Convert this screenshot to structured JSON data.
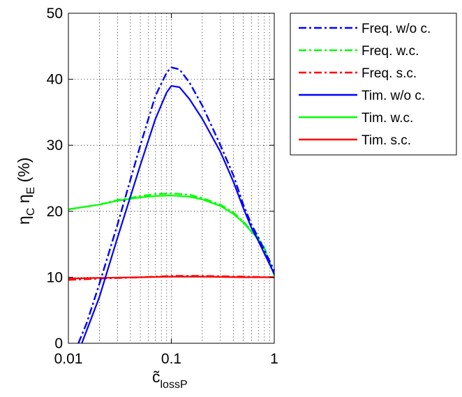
{
  "chart_data": {
    "type": "line",
    "xscale": "log",
    "xlim": [
      0.01,
      1
    ],
    "ylim": [
      0,
      50
    ],
    "x_ticks": [
      0.01,
      0.1,
      1
    ],
    "x_tick_labels": [
      "0.01",
      "0.1",
      "1"
    ],
    "y_ticks": [
      0,
      10,
      20,
      30,
      40,
      50
    ],
    "y_tick_labels": [
      "0",
      "10",
      "20",
      "30",
      "40",
      "50"
    ],
    "xlabel": {
      "base": "c̃",
      "sub": "lossP"
    },
    "ylabel": {
      "eta1": "η",
      "sub1": "C",
      "eta2": "η",
      "sub2": "E",
      "unit": "(%)"
    },
    "grid": true,
    "legend_position": "outside-right-top",
    "series": [
      {
        "name": "Freq. w/o c.",
        "color": "#0000ff",
        "style": "dashdot",
        "x": [
          0.0125,
          0.015,
          0.02,
          0.03,
          0.05,
          0.07,
          0.09,
          0.1,
          0.12,
          0.15,
          0.2,
          0.3,
          0.4,
          0.5,
          0.6,
          0.7,
          1.0
        ],
        "y": [
          0,
          3,
          9,
          18,
          30,
          37.5,
          41,
          41.8,
          41.5,
          39.5,
          36,
          30,
          25.5,
          21,
          18,
          16,
          11
        ]
      },
      {
        "name": "Freq. w.c.",
        "color": "#00ff00",
        "style": "dashdot",
        "x": [
          0.01,
          0.02,
          0.03,
          0.05,
          0.07,
          0.1,
          0.15,
          0.2,
          0.3,
          0.4,
          0.5,
          0.6,
          0.7,
          0.8,
          1.0
        ],
        "y": [
          20.3,
          21,
          21.7,
          22.3,
          22.6,
          22.7,
          22.5,
          22,
          21,
          19.8,
          18.5,
          17,
          16,
          14.5,
          10.3
        ]
      },
      {
        "name": "Freq. s.c.",
        "color": "#ff0000",
        "style": "dashdot",
        "x": [
          0.01,
          0.02,
          0.05,
          0.1,
          0.2,
          0.5,
          1.0
        ],
        "y": [
          9.6,
          9.8,
          10,
          10.2,
          10.2,
          10.1,
          10
        ]
      },
      {
        "name": "Tim. w/o c.",
        "color": "#0000ff",
        "style": "solid",
        "x": [
          0.0135,
          0.02,
          0.03,
          0.05,
          0.07,
          0.09,
          0.1,
          0.12,
          0.15,
          0.2,
          0.3,
          0.4,
          0.5,
          0.6,
          0.7,
          1.0
        ],
        "y": [
          0,
          7,
          16,
          27,
          34,
          38,
          39,
          38.8,
          37,
          34,
          29,
          24.5,
          20.5,
          17.5,
          15.5,
          10.5
        ]
      },
      {
        "name": "Tim. w.c.",
        "color": "#00ff00",
        "style": "solid",
        "x": [
          0.01,
          0.02,
          0.03,
          0.05,
          0.07,
          0.1,
          0.15,
          0.2,
          0.3,
          0.4,
          0.5,
          0.6,
          0.7,
          0.8,
          1.0
        ],
        "y": [
          20.3,
          21,
          21.6,
          22.1,
          22.3,
          22.4,
          22.2,
          21.8,
          20.8,
          19.6,
          18.3,
          16.9,
          15.8,
          14.3,
          10.3
        ]
      },
      {
        "name": "Tim. s.c.",
        "color": "#ff0000",
        "style": "solid",
        "x": [
          0.01,
          0.02,
          0.05,
          0.1,
          0.2,
          0.5,
          1.0
        ],
        "y": [
          9.8,
          9.9,
          10,
          10.1,
          10.1,
          10,
          10
        ]
      }
    ]
  }
}
